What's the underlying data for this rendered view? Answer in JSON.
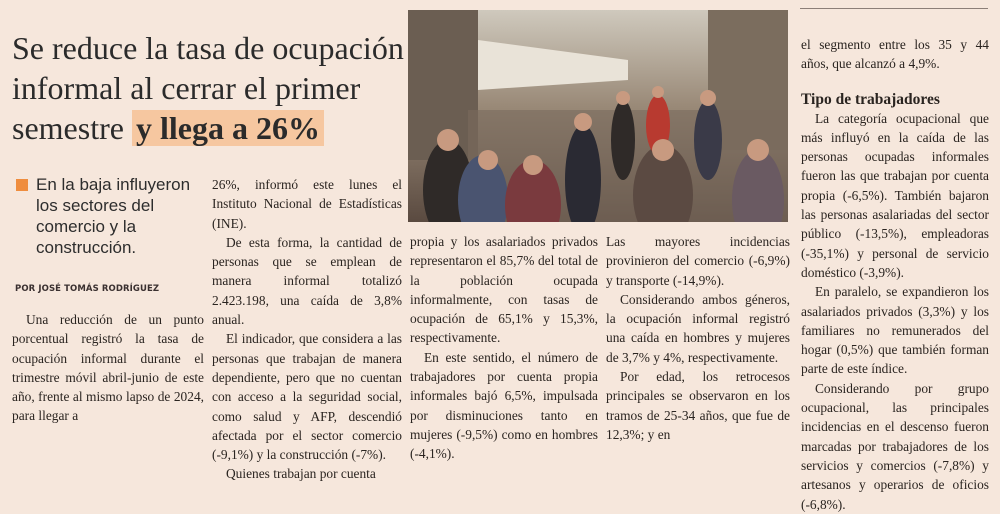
{
  "headline": {
    "lines": [
      "Se reduce la tasa de ocupación",
      "informal al cerrar el primer",
      "semestre"
    ],
    "highlight": "y llega a 26%"
  },
  "subheadline": "En la baja influyeron los sectores del comercio y la construcción.",
  "byline": "POR JOSÉ TOMÁS RODRÍGUEZ",
  "colors": {
    "background": "#f6e7dc",
    "accent": "#ef8d3e",
    "highlight": "#f6c7a0"
  },
  "photo": {
    "icon": "street-crowd-photo"
  },
  "columns": {
    "c1": [
      "Una reducción de un punto porcentual registró la tasa de ocupación informal durante el trimestre móvil abril-junio de este año, frente al mismo lapso de 2024, para llegar a"
    ],
    "c2": [
      "26%, informó este lunes el Instituto Nacional de Estadísticas (INE).",
      "De esta forma, la cantidad de personas que se emplean de manera informal totalizó 2.423.198, una caída de 3,8% anual.",
      "El indicador, que considera a las personas que trabajan de manera dependiente, pero que no cuentan con acceso a la seguridad social, como salud y AFP, descendió afectada por el sector comercio (-9,1%) y la construcción (-7%).",
      "Quienes trabajan por cuenta"
    ],
    "c3": [
      "propia y los asalariados privados representaron el 85,7% del total de la población ocupada informalmente, con tasas de ocupación de 65,1% y 15,3%, respectivamente.",
      "En este sentido, el número de trabajadores por cuenta propia informales bajó 6,5%, impulsada por disminuciones tanto en mujeres (-9,5%) como en hombres (-4,1%)."
    ],
    "c4": [
      "Las mayores incidencias provinieron del comercio (-6,9%) y transporte (-14,9%).",
      "Considerando ambos géneros, la ocupación informal registró una caída en hombres y mujeres de 3,7% y 4%, respectivamente.",
      "Por edad, los retrocesos principales se observaron en los tramos de 25-34 años, que fue de 12,3%; y en"
    ],
    "c5_intro": "el segmento entre los 35 y 44 años, que alcanzó a 4,9%.",
    "c5_heading": "Tipo de trabajadores",
    "c5": [
      "La categoría ocupacional que más influyó en la caída de las personas ocupadas informales fueron las que trabajan por cuenta propia (-6,5%). También bajaron las personas asalariadas del sector público (-13,5%), empleadoras (-35,1%) y personal de servicio doméstico (-3,9%).",
      "En paralelo, se expandieron los asalariados privados (3,3%) y los familiares no remunerados del hogar (0,5%) que también forman parte de este índice.",
      "Considerando por grupo ocupacional, las principales incidencias en el descenso fueron marcadas por trabajadores de los servicios y comercios (-7,8%) y artesanos y operarios de oficios (-6,8%)."
    ]
  }
}
